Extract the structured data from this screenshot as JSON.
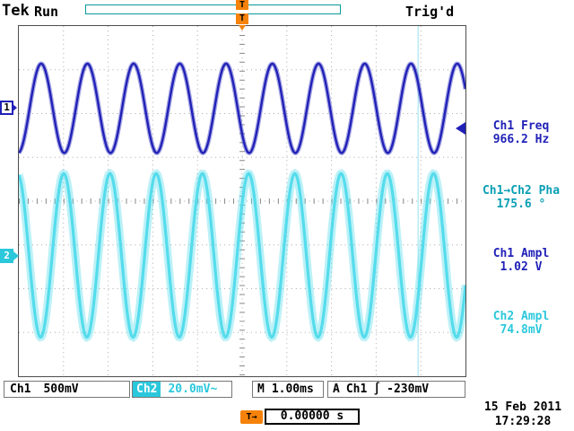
{
  "colors": {
    "ch1": "#2121b8",
    "ch2": "#2bc8dc",
    "trigger_orange": "#f5820a",
    "record_bar": "#0a9a9a"
  },
  "header": {
    "logo": "Tek",
    "acq_state": "Run",
    "trig_status": "Trig'd",
    "trig_marker": "T"
  },
  "graticule": {
    "ch1_marker": "1",
    "ch2_marker": "2"
  },
  "measurements": [
    {
      "label": "Ch1 Freq",
      "value": "966.2 Hz",
      "color": "#2121b8"
    },
    {
      "label": "Ch1→Ch2 Pha",
      "value": "175.6 °",
      "color": "#0a9fb5"
    },
    {
      "label": "Ch1 Ampl",
      "value": "1.02 V",
      "color": "#2121b8"
    },
    {
      "label": "Ch2 Ampl",
      "value": "74.8mV",
      "color": "#2bc8dc"
    }
  ],
  "status_bar": {
    "ch1_label": "Ch1",
    "ch1_scale": "500mV",
    "ch2_label": "Ch2",
    "ch2_scale": "20.0mV~",
    "timebase_label": "M",
    "timebase": "1.00ms",
    "trig_line": "A",
    "trig_source": "Ch1",
    "trig_slope": "∫",
    "trig_level": "-230mV"
  },
  "footer": {
    "delay_badge": "T→",
    "delay_value": "0.00000 s",
    "date": "15 Feb 2011",
    "time": "17:29:28"
  },
  "chart_data": {
    "type": "line",
    "title": "Tektronix oscilloscope capture: Ch1 and Ch2 sine waves",
    "x_divisions": 10,
    "y_divisions": 8,
    "ms_per_div": 1.0,
    "series": [
      {
        "name": "Ch1",
        "volts_per_div": "500mV",
        "freq_hz": 966.2,
        "amplitude_div": 1.02,
        "center_div_from_top": 1.88,
        "phase_at_left_deg": -174.0,
        "color": "#2121b8",
        "halo": 5,
        "core": 2.4
      },
      {
        "name": "Ch2",
        "volts_per_div": "20.0mV",
        "freq_hz": 966.2,
        "amplitude_div": 1.87,
        "center_div_from_top": 5.24,
        "phase_at_left_deg": -349.6,
        "color": "#55dcec",
        "halo": 9,
        "core": 3.2
      }
    ],
    "measured": {
      "ch1_freq": "966.2 Hz",
      "ch1_ch2_phase": "175.6 °",
      "ch1_ampl": "1.02 V",
      "ch2_ampl": "74.8mV"
    },
    "trigger": {
      "source": "Ch1",
      "level": "-230mV",
      "slope_symbol": "∫",
      "delay": "0.00000 s"
    },
    "artifact_line_x_div": 8.94
  }
}
